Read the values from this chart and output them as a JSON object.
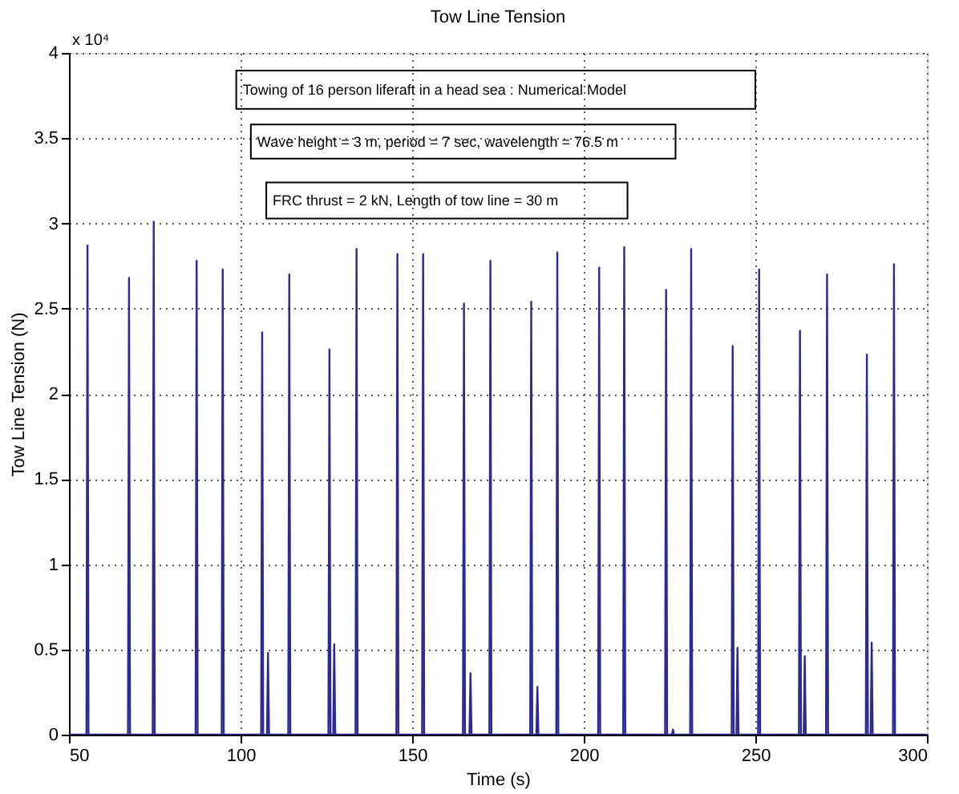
{
  "chart_data": {
    "type": "line",
    "title": "Tow Line Tension",
    "xlabel": "Time (s)",
    "ylabel": "Tow Line Tension (N)",
    "annotations": [
      "x 10⁴",
      "Towing of 16 person liferaft in a head sea : Numerical Model",
      "Wave height = 3 m, period = 7 sec, wavelength = 76.5 m",
      "FRC thrust = 2 kN, Length of tow line = 30 m"
    ],
    "x": [
      50,
      55.1,
      55.4,
      55.7,
      67.2,
      67.5,
      67.8,
      74.4,
      74.7,
      75.0,
      86.9,
      87.2,
      87.5,
      94.5,
      94.8,
      95.1,
      106.0,
      106.3,
      106.6,
      107.7,
      108.0,
      108.3,
      113.9,
      114.2,
      114.5,
      125.6,
      125.9,
      126.2,
      127.0,
      127.3,
      127.6,
      133.5,
      133.8,
      134.1,
      145.4,
      145.7,
      146.0,
      152.9,
      153.2,
      153.5,
      164.8,
      165.1,
      165.4,
      166.7,
      167.0,
      167.3,
      172.5,
      172.8,
      173.1,
      184.4,
      184.7,
      185.0,
      186.2,
      186.5,
      186.8,
      192.0,
      192.3,
      192.6,
      204.2,
      204.5,
      204.8,
      211.5,
      211.8,
      212.1,
      223.7,
      224.0,
      224.3,
      225.7,
      226.0,
      226.3,
      231.0,
      231.3,
      231.6,
      243.1,
      243.4,
      243.7,
      244.5,
      244.8,
      245.1,
      250.8,
      251.1,
      251.4,
      262.7,
      263.0,
      263.3,
      264.1,
      264.4,
      264.7,
      270.6,
      270.9,
      271.2,
      282.2,
      282.5,
      282.8,
      283.6,
      283.9,
      284.2,
      290.1,
      290.4,
      290.7,
      300
    ],
    "series": [
      {
        "color": "#2b2b96",
        "values": [
          0,
          0,
          2.87,
          0,
          0,
          2.68,
          0,
          0,
          3.01,
          0,
          0,
          2.78,
          0,
          0,
          2.73,
          0,
          0,
          2.36,
          0,
          0,
          0.48,
          0,
          0,
          2.7,
          0,
          0,
          2.26,
          0,
          0,
          0.53,
          0,
          0,
          2.85,
          0,
          0,
          2.82,
          0,
          0,
          2.82,
          0,
          0,
          2.53,
          0,
          0,
          0.36,
          0,
          0,
          2.78,
          0,
          0,
          2.54,
          0,
          0,
          0.28,
          0,
          0,
          2.83,
          0,
          0,
          2.74,
          0,
          0,
          2.86,
          0,
          0,
          2.61,
          0,
          0,
          0.03,
          0,
          0,
          2.85,
          0,
          0,
          2.28,
          0,
          0,
          0.51,
          0,
          0,
          2.73,
          0,
          0,
          2.37,
          0,
          0,
          0.46,
          0,
          0,
          2.7,
          0,
          0,
          2.23,
          0,
          0,
          0.54,
          0,
          0,
          2.76,
          0,
          0
        ]
      }
    ],
    "xlim": [
      50,
      300
    ],
    "xticks": [
      50,
      100,
      150,
      200,
      250,
      300
    ],
    "ylim": [
      0,
      4
    ],
    "yticks": [
      0,
      0.5,
      1,
      1.5,
      2,
      2.5,
      3,
      3.5,
      4
    ],
    "grid": true,
    "marker": "none",
    "line_style": "solid"
  }
}
